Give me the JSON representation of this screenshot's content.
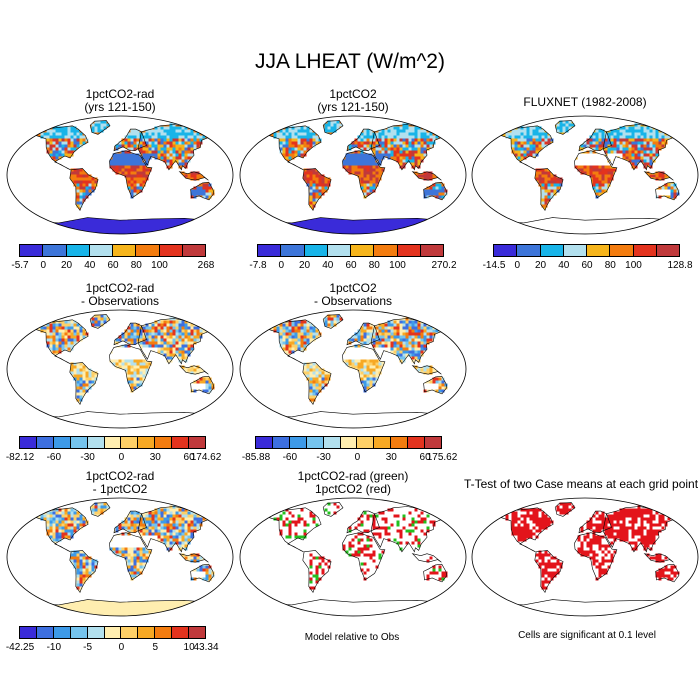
{
  "title": "JJA LHEAT (W/m^2)",
  "colors": {
    "continent_outline": "#000000",
    "map_frame": "#000000"
  },
  "panels": [
    {
      "id": "p1",
      "title_line1": "1pctCO2-rad",
      "title_line2": "(yrs 121-150)",
      "field": "abs",
      "antarctica": "#3a2bd9",
      "antarctica_full": true
    },
    {
      "id": "p2",
      "title_line1": "1pctCO2",
      "title_line2": "(yrs 121-150)",
      "field": "abs",
      "antarctica": "#3a2bd9",
      "antarctica_full": true
    },
    {
      "id": "p3",
      "title_line1": "FLUXNET (1982-2008)",
      "title_line2": "",
      "field": "obs",
      "antarctica": "none",
      "antarctica_full": false
    },
    {
      "id": "p4",
      "title_line1": "1pctCO2-rad",
      "title_line2": "- Observations",
      "field": "diff",
      "antarctica": "none",
      "antarctica_full": false
    },
    {
      "id": "p5",
      "title_line1": "1pctCO2",
      "title_line2": "- Observations",
      "field": "diff",
      "antarctica": "none",
      "antarctica_full": false
    },
    {
      "id": "p6",
      "title_line1": "1pctCO2-rad",
      "title_line2": "- 1pctCO2",
      "field": "dd",
      "antarctica": "#ffeeb0",
      "antarctica_full": true
    },
    {
      "id": "p7",
      "title_line1": "1pctCO2-rad (green)",
      "title_line2": "1pctCO2 (red)",
      "field": "rg",
      "antarctica": "none",
      "antarctica_full": false
    },
    {
      "id": "p8",
      "title_line1": "T-Test of two Case means at each grid point",
      "title_line2": "",
      "field": "ttest",
      "antarctica": "none",
      "antarctica_full": false
    }
  ],
  "colorbars": [
    {
      "id": "cb1",
      "colors": [
        "#3a2bd9",
        "#3d75d9",
        "#18b4e8",
        "#b2e0ee",
        "#f6b51c",
        "#f37c0f",
        "#e3331e",
        "#c0393b"
      ],
      "labels": [
        "-5.7",
        "0",
        "20",
        "40",
        "60",
        "80",
        "100",
        "268"
      ]
    },
    {
      "id": "cb2",
      "colors": [
        "#3a2bd9",
        "#3d75d9",
        "#18b4e8",
        "#b2e0ee",
        "#f6b51c",
        "#f37c0f",
        "#e3331e",
        "#c0393b"
      ],
      "labels": [
        "-7.8",
        "0",
        "20",
        "40",
        "60",
        "80",
        "100",
        "270.2"
      ]
    },
    {
      "id": "cb3",
      "colors": [
        "#3a2bd9",
        "#3d75d9",
        "#18b4e8",
        "#b2e0ee",
        "#f6b51c",
        "#f37c0f",
        "#e3331e",
        "#c0393b"
      ],
      "labels": [
        "-14.5",
        "0",
        "20",
        "40",
        "60",
        "80",
        "100",
        "128.8"
      ]
    },
    {
      "id": "cb4",
      "colors": [
        "#3a2bd9",
        "#3d6fe0",
        "#3d9ae8",
        "#75c4ee",
        "#b2e0ee",
        "#ffeeb0",
        "#fed067",
        "#f7a924",
        "#f37c0f",
        "#e3331e",
        "#c0393b"
      ],
      "labels": [
        "-82.12",
        "-60",
        "-30",
        "0",
        "30",
        "60",
        "174.62"
      ],
      "label_positions": [
        0,
        2,
        4,
        6,
        8,
        10,
        11
      ]
    },
    {
      "id": "cb5",
      "colors": [
        "#3a2bd9",
        "#3d6fe0",
        "#3d9ae8",
        "#75c4ee",
        "#b2e0ee",
        "#ffeeb0",
        "#fed067",
        "#f7a924",
        "#f37c0f",
        "#e3331e",
        "#c0393b"
      ],
      "labels": [
        "-85.88",
        "-60",
        "-30",
        "0",
        "30",
        "60",
        "175.62"
      ],
      "label_positions": [
        0,
        2,
        4,
        6,
        8,
        10,
        11
      ]
    },
    {
      "id": "cb6",
      "colors": [
        "#3a2bd9",
        "#3d6fe0",
        "#3d9ae8",
        "#75c4ee",
        "#b2e0ee",
        "#ffeeb0",
        "#fed067",
        "#f7a924",
        "#f37c0f",
        "#e3331e",
        "#c0393b"
      ],
      "labels": [
        "-42.25",
        "-10",
        "-5",
        "0",
        "5",
        "10",
        "43.34"
      ],
      "label_positions": [
        0,
        2,
        4,
        6,
        8,
        10,
        11
      ]
    }
  ],
  "notes": {
    "model_relative": "Model relative to Obs",
    "significance": "Cells are significant at 0.1 level"
  }
}
